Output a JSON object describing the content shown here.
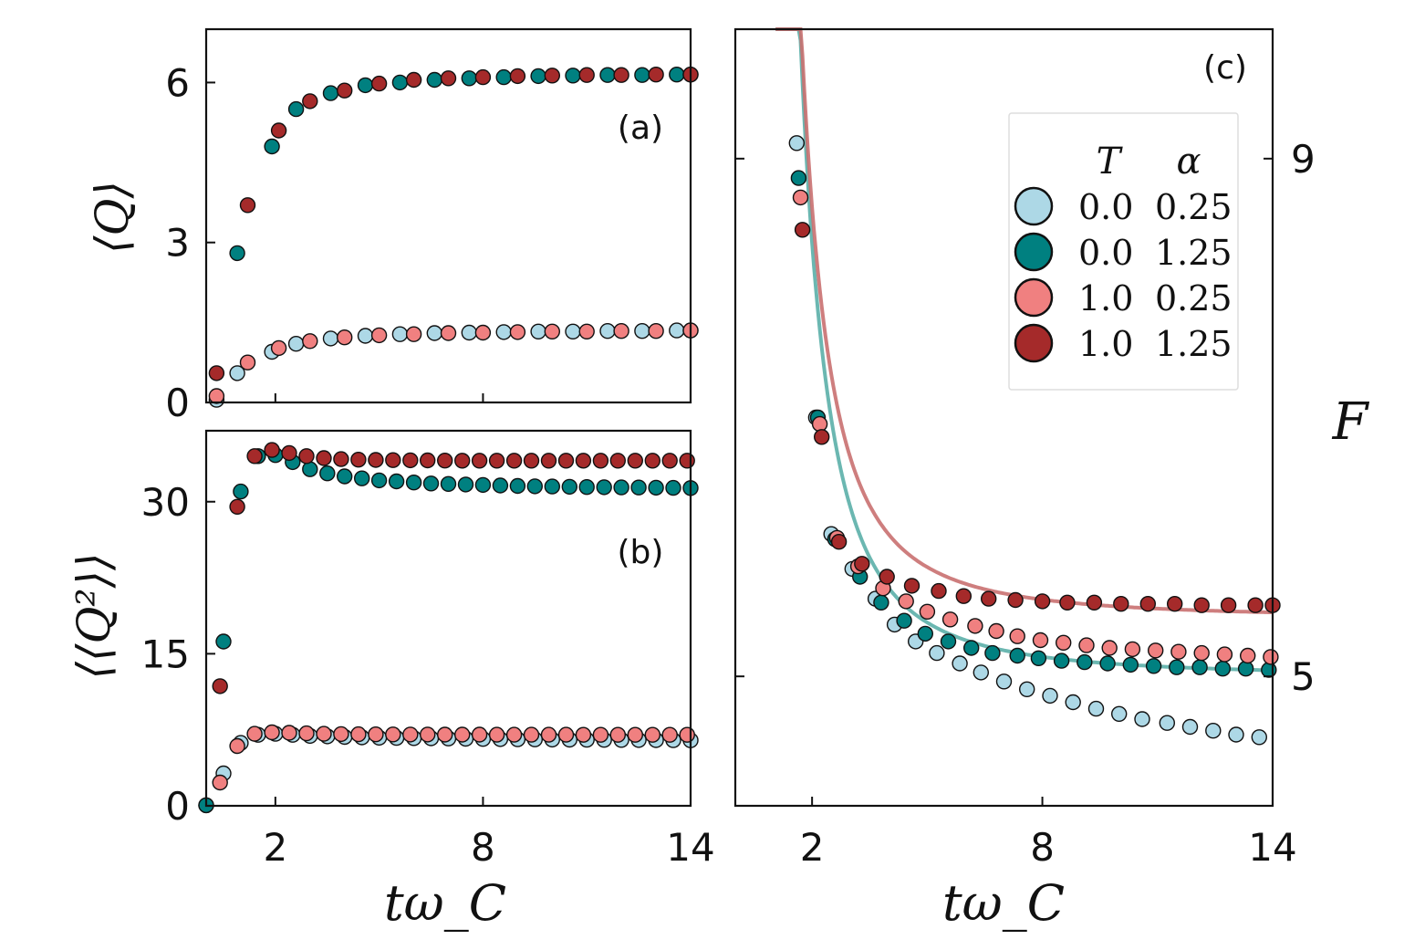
{
  "colors": {
    "T0_a025": "#ADD8E6",
    "T0_a125": "#008080",
    "T1_a025": "#F08080",
    "T1_a125": "#A52A2A",
    "fit_T0": "#5BAFA9",
    "fit_T1": "#C97070"
  },
  "chart_data": [
    {
      "id": "a",
      "type": "scatter",
      "panel_label": "(a)",
      "ylabel": "⟨Q⟩",
      "xlim": [
        0,
        14
      ],
      "ylim": [
        0,
        7
      ],
      "yticks": [
        0,
        3,
        6
      ],
      "ytick_labels": [
        "0",
        "3",
        "6"
      ],
      "xticks": [
        2,
        8,
        14
      ],
      "series": [
        {
          "name": "T=0.0, α=0.25",
          "color_key": "T0_a025",
          "x": [
            0.3,
            0.9,
            1.9,
            2.6,
            3.6,
            4.6,
            5.6,
            6.6,
            7.6,
            8.6,
            9.6,
            10.6,
            11.6,
            12.6,
            13.6,
            14.0
          ],
          "y": [
            0.05,
            0.55,
            0.95,
            1.1,
            1.2,
            1.25,
            1.28,
            1.3,
            1.31,
            1.32,
            1.33,
            1.33,
            1.34,
            1.34,
            1.35,
            1.35
          ]
        },
        {
          "name": "T=0.0, α=1.25",
          "color_key": "T0_a125",
          "x": [
            0.9,
            1.9,
            2.6,
            3.6,
            4.6,
            5.6,
            6.6,
            7.6,
            8.6,
            9.6,
            10.6,
            11.6,
            12.6,
            13.6,
            14.0
          ],
          "y": [
            2.8,
            4.8,
            5.5,
            5.8,
            5.95,
            6.0,
            6.05,
            6.08,
            6.1,
            6.12,
            6.13,
            6.14,
            6.14,
            6.15,
            6.15
          ]
        },
        {
          "name": "T=1.0, α=0.25",
          "color_key": "T1_a025",
          "x": [
            0.3,
            1.2,
            2.1,
            3.0,
            4.0,
            5.0,
            6.0,
            7.0,
            8.0,
            9.0,
            10.0,
            11.0,
            12.0,
            13.0,
            14.0
          ],
          "y": [
            0.12,
            0.75,
            1.02,
            1.15,
            1.22,
            1.26,
            1.28,
            1.3,
            1.31,
            1.32,
            1.33,
            1.33,
            1.34,
            1.34,
            1.35
          ]
        },
        {
          "name": "T=1.0, α=1.25",
          "color_key": "T1_a125",
          "x": [
            0.3,
            1.2,
            2.1,
            3.0,
            4.0,
            5.0,
            6.0,
            7.0,
            8.0,
            9.0,
            10.0,
            11.0,
            12.0,
            13.0,
            14.0
          ],
          "y": [
            0.55,
            3.7,
            5.1,
            5.65,
            5.85,
            5.98,
            6.05,
            6.08,
            6.1,
            6.12,
            6.13,
            6.14,
            6.14,
            6.15,
            6.15
          ]
        }
      ]
    },
    {
      "id": "b",
      "type": "scatter",
      "panel_label": "(b)",
      "ylabel": "⟨⟨Q²⟩⟩",
      "xlabel": "tω_C",
      "xlim": [
        0,
        14
      ],
      "ylim": [
        0,
        37
      ],
      "yticks": [
        0,
        15,
        30
      ],
      "ytick_labels": [
        "0",
        "15",
        "30"
      ],
      "xticks": [
        2,
        8,
        14
      ],
      "xtick_labels": [
        "2",
        "8",
        "14"
      ],
      "series": [
        {
          "name": "T=0.0, α=0.25",
          "color_key": "T0_a025",
          "x": [
            0.0,
            0.5,
            1.0,
            1.5,
            2.0,
            2.5,
            3.0,
            3.5,
            4.0,
            4.5,
            5.0,
            5.5,
            6.0,
            6.5,
            7.0,
            7.5,
            8.0,
            8.5,
            9.0,
            9.5,
            10.0,
            10.5,
            11.0,
            11.5,
            12.0,
            12.5,
            13.0,
            13.5,
            14.0
          ],
          "y": [
            0.05,
            3.2,
            6.2,
            7.0,
            7.1,
            7.0,
            6.9,
            6.85,
            6.8,
            6.75,
            6.72,
            6.7,
            6.68,
            6.66,
            6.64,
            6.62,
            6.6,
            6.58,
            6.56,
            6.55,
            6.54,
            6.53,
            6.52,
            6.51,
            6.5,
            6.49,
            6.48,
            6.47,
            6.46
          ]
        },
        {
          "name": "T=0.0, α=1.25",
          "color_key": "T0_a125",
          "x": [
            0.0,
            0.5,
            1.0,
            1.5,
            2.0,
            2.5,
            3.0,
            3.5,
            4.0,
            4.5,
            5.0,
            5.5,
            6.0,
            6.5,
            7.0,
            7.5,
            8.0,
            8.5,
            9.0,
            9.5,
            10.0,
            10.5,
            11.0,
            11.5,
            12.0,
            12.5,
            13.0,
            13.5,
            14.0
          ],
          "y": [
            0.05,
            16.2,
            31.0,
            34.5,
            34.6,
            33.9,
            33.2,
            32.8,
            32.5,
            32.3,
            32.1,
            32.0,
            31.9,
            31.8,
            31.75,
            31.7,
            31.65,
            31.6,
            31.55,
            31.52,
            31.5,
            31.47,
            31.45,
            31.43,
            31.41,
            31.4,
            31.38,
            31.36,
            31.35
          ]
        },
        {
          "name": "T=1.0, α=0.25",
          "color_key": "T1_a025",
          "x": [
            0.4,
            0.9,
            1.4,
            1.9,
            2.4,
            2.9,
            3.4,
            3.9,
            4.4,
            4.9,
            5.4,
            5.9,
            6.4,
            6.9,
            7.4,
            7.9,
            8.4,
            8.9,
            9.4,
            9.9,
            10.4,
            10.9,
            11.4,
            11.9,
            12.4,
            12.9,
            13.4,
            13.9
          ],
          "y": [
            2.3,
            5.9,
            7.1,
            7.25,
            7.2,
            7.15,
            7.1,
            7.08,
            7.06,
            7.05,
            7.04,
            7.03,
            7.03,
            7.02,
            7.02,
            7.02,
            7.01,
            7.01,
            7.01,
            7.01,
            7.01,
            7.0,
            7.0,
            7.0,
            7.0,
            7.0,
            7.0,
            7.0
          ]
        },
        {
          "name": "T=1.0, α=1.25",
          "color_key": "T1_a125",
          "x": [
            0.4,
            0.9,
            1.4,
            1.9,
            2.4,
            2.9,
            3.4,
            3.9,
            4.4,
            4.9,
            5.4,
            5.9,
            6.4,
            6.9,
            7.4,
            7.9,
            8.4,
            8.9,
            9.4,
            9.9,
            10.4,
            10.9,
            11.4,
            11.9,
            12.4,
            12.9,
            13.4,
            13.9
          ],
          "y": [
            11.8,
            29.5,
            34.5,
            35.1,
            34.8,
            34.5,
            34.3,
            34.2,
            34.15,
            34.12,
            34.1,
            34.08,
            34.07,
            34.06,
            34.05,
            34.05,
            34.05,
            34.05,
            34.05,
            34.05,
            34.05,
            34.05,
            34.05,
            34.05,
            34.05,
            34.05,
            34.05,
            34.05
          ]
        }
      ]
    },
    {
      "id": "c",
      "type": "scatter",
      "panel_label": "(c)",
      "ylabel": "F",
      "xlabel": "tω_C",
      "xlim": [
        0,
        14
      ],
      "ylim": [
        4,
        10
      ],
      "yticks": [
        5,
        9
      ],
      "ytick_labels": [
        "5",
        "9"
      ],
      "xticks": [
        2,
        8,
        14
      ],
      "xtick_labels": [
        "2",
        "8",
        "14"
      ],
      "legend": {
        "headers": [
          "T",
          "α"
        ],
        "entries": [
          {
            "T": "0.0",
            "alpha": "0.25",
            "color_key": "T0_a025"
          },
          {
            "T": "0.0",
            "alpha": "1.25",
            "color_key": "T0_a125"
          },
          {
            "T": "1.0",
            "alpha": "0.25",
            "color_key": "T1_a025"
          },
          {
            "T": "1.0",
            "alpha": "1.25",
            "color_key": "T1_a125"
          }
        ]
      },
      "fit_lines": [
        {
          "name": "fit T=0.0",
          "color_key": "fit_T0",
          "asymptote": 5.0,
          "amplitude": 9.5,
          "x_offset": 0.5
        },
        {
          "name": "fit T=1.0",
          "color_key": "fit_T1",
          "asymptote": 5.45,
          "amplitude": 9.0,
          "x_offset": 0.5
        }
      ],
      "series": [
        {
          "name": "T=0.0, α=0.25",
          "color_key": "T0_a025",
          "x": [
            1.6,
            2.1,
            2.5,
            3.05,
            3.65,
            4.15,
            4.7,
            5.25,
            5.85,
            6.4,
            7.0,
            7.6,
            8.2,
            8.8,
            9.4,
            10.0,
            10.6,
            11.25,
            11.85,
            12.45,
            13.05,
            13.65
          ],
          "y": [
            9.12,
            7.0,
            6.1,
            5.83,
            5.6,
            5.4,
            5.27,
            5.18,
            5.1,
            5.03,
            4.96,
            4.9,
            4.85,
            4.8,
            4.75,
            4.71,
            4.67,
            4.64,
            4.61,
            4.58,
            4.55,
            4.53
          ]
        },
        {
          "name": "T=0.0, α=1.25",
          "color_key": "T0_a125",
          "x": [
            1.65,
            2.15,
            2.6,
            3.25,
            3.8,
            4.4,
            4.95,
            5.55,
            6.15,
            6.7,
            7.35,
            7.9,
            8.5,
            9.1,
            9.7,
            10.3,
            10.9,
            11.5,
            12.1,
            12.7,
            13.3,
            13.9
          ],
          "y": [
            8.85,
            7.0,
            6.06,
            5.77,
            5.57,
            5.43,
            5.33,
            5.27,
            5.22,
            5.18,
            5.16,
            5.14,
            5.12,
            5.11,
            5.1,
            5.09,
            5.08,
            5.07,
            5.07,
            5.06,
            5.06,
            5.05
          ]
        },
        {
          "name": "T=1.0, α=0.25",
          "color_key": "T1_a025",
          "x": [
            1.7,
            2.2,
            2.65,
            3.2,
            3.85,
            4.45,
            5.0,
            5.6,
            6.25,
            6.8,
            7.35,
            7.95,
            8.55,
            9.15,
            9.75,
            10.35,
            10.95,
            11.55,
            12.15,
            12.75,
            13.35,
            13.95
          ],
          "y": [
            8.7,
            6.95,
            6.07,
            5.85,
            5.68,
            5.58,
            5.5,
            5.44,
            5.39,
            5.35,
            5.31,
            5.28,
            5.26,
            5.24,
            5.22,
            5.21,
            5.2,
            5.19,
            5.18,
            5.17,
            5.16,
            5.15
          ]
        },
        {
          "name": "T=1.0, α=1.25",
          "color_key": "T1_a125",
          "x": [
            1.75,
            2.25,
            2.7,
            3.3,
            3.95,
            4.6,
            5.3,
            5.95,
            6.6,
            7.3,
            8.0,
            8.65,
            9.35,
            10.05,
            10.75,
            11.45,
            12.15,
            12.85,
            13.55,
            14.0
          ],
          "y": [
            8.45,
            6.85,
            6.04,
            5.87,
            5.77,
            5.7,
            5.66,
            5.62,
            5.6,
            5.59,
            5.58,
            5.57,
            5.57,
            5.56,
            5.56,
            5.56,
            5.55,
            5.55,
            5.55,
            5.55
          ]
        }
      ]
    }
  ]
}
